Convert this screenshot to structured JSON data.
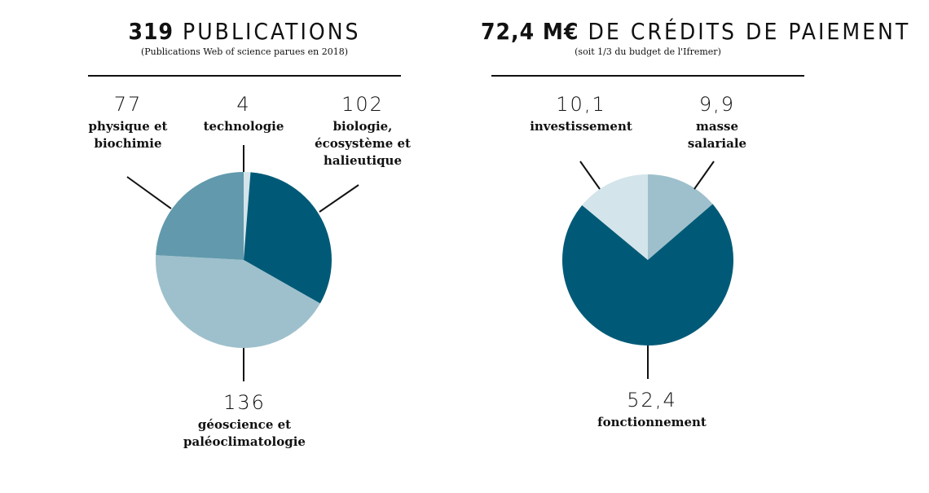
{
  "left": {
    "title_bold": "319",
    "title_rest": "PUBLICATIONS",
    "subtitle": "(Publications Web of science parues en 2018)"
  },
  "right": {
    "title_bold": "72,4 M€",
    "title_rest": "DE CRÉDITS DE PAIEMENT",
    "subtitle": "(soit 1/3 du budget de l'Ifremer)"
  },
  "colors": {
    "dark": "#005a77",
    "mid": "#6299ac",
    "light": "#9ec0cc",
    "pale": "#d3e4ea"
  },
  "chart_data": [
    {
      "type": "pie",
      "title": "319 PUBLICATIONS",
      "series": [
        {
          "value_text": "4",
          "value": 4,
          "label_lines": [
            "technologie"
          ],
          "color": "pale"
        },
        {
          "value_text": "102",
          "value": 102,
          "label_lines": [
            "biologie,",
            "écosystème et",
            "halieutique"
          ],
          "color": "dark"
        },
        {
          "value_text": "136",
          "value": 136,
          "label_lines": [
            "géoscience et",
            "paléoclimatologie"
          ],
          "color": "light"
        },
        {
          "value_text": "77",
          "value": 77,
          "label_lines": [
            "physique et",
            "biochimie"
          ],
          "color": "mid"
        }
      ]
    },
    {
      "type": "pie",
      "title": "72,4 M€ DE CRÉDITS DE PAIEMENT",
      "series": [
        {
          "value_text": "9,9",
          "value": 9.9,
          "label_lines": [
            "masse",
            "salariale"
          ],
          "color": "light"
        },
        {
          "value_text": "52,4",
          "value": 52.4,
          "label_lines": [
            "fonctionnement"
          ],
          "color": "dark"
        },
        {
          "value_text": "10,1",
          "value": 10.1,
          "label_lines": [
            "investissement"
          ],
          "color": "pale"
        }
      ]
    }
  ]
}
